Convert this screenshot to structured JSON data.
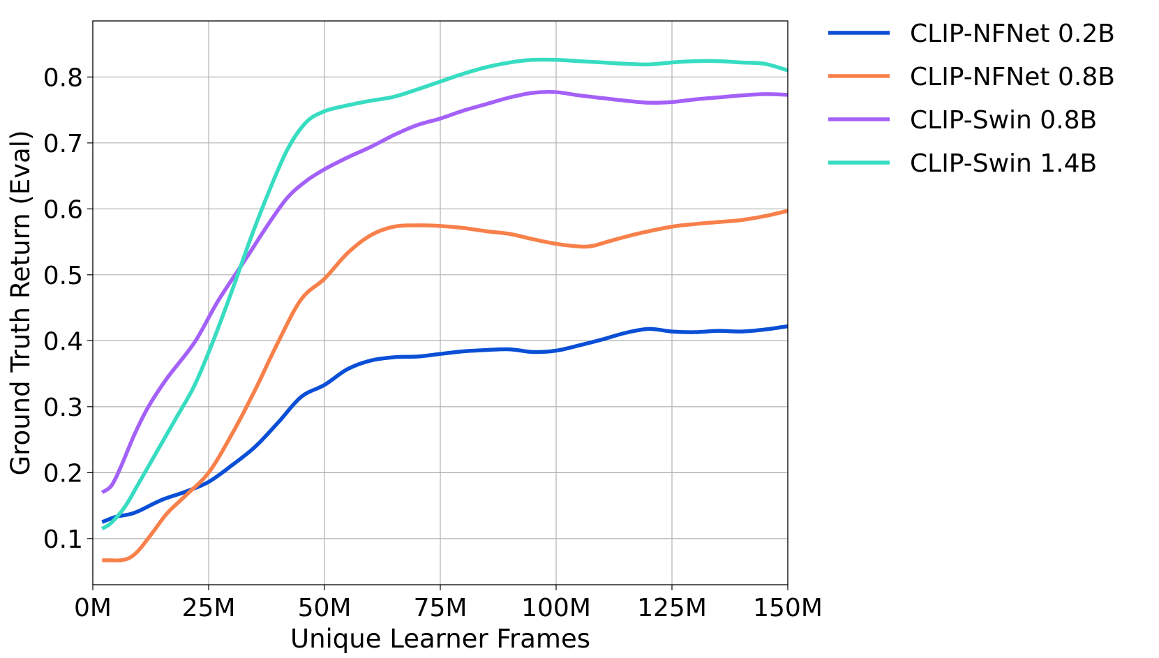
{
  "chart_data": {
    "type": "line",
    "title": "",
    "xlabel": "Unique Learner Frames",
    "ylabel": "Ground Truth Return (Eval)",
    "xlim": [
      0,
      150
    ],
    "ylim": [
      0.03,
      0.885
    ],
    "x_unit": "M (frames)",
    "xticks": [
      {
        "value": 0,
        "label": "0M"
      },
      {
        "value": 25,
        "label": "25M"
      },
      {
        "value": 50,
        "label": "50M"
      },
      {
        "value": 75,
        "label": "75M"
      },
      {
        "value": 100,
        "label": "100M"
      },
      {
        "value": 125,
        "label": "125M"
      },
      {
        "value": 150,
        "label": "150M"
      }
    ],
    "yticks": [
      {
        "value": 0.1,
        "label": "0.1"
      },
      {
        "value": 0.2,
        "label": "0.2"
      },
      {
        "value": 0.3,
        "label": "0.3"
      },
      {
        "value": 0.4,
        "label": "0.4"
      },
      {
        "value": 0.5,
        "label": "0.5"
      },
      {
        "value": 0.6,
        "label": "0.6"
      },
      {
        "value": 0.7,
        "label": "0.7"
      },
      {
        "value": 0.8,
        "label": "0.8"
      }
    ],
    "grid": true,
    "legend_position": "outside-right-top",
    "series": [
      {
        "name": "CLIP-NFNet 0.2B",
        "color": "#0a4fd6",
        "points": [
          [
            2,
            0.125
          ],
          [
            5,
            0.133
          ],
          [
            8,
            0.137
          ],
          [
            10,
            0.142
          ],
          [
            15,
            0.159
          ],
          [
            20,
            0.171
          ],
          [
            25,
            0.186
          ],
          [
            30,
            0.211
          ],
          [
            35,
            0.239
          ],
          [
            40,
            0.276
          ],
          [
            45,
            0.315
          ],
          [
            50,
            0.333
          ],
          [
            55,
            0.357
          ],
          [
            60,
            0.37
          ],
          [
            65,
            0.375
          ],
          [
            70,
            0.376
          ],
          [
            75,
            0.38
          ],
          [
            80,
            0.384
          ],
          [
            85,
            0.386
          ],
          [
            90,
            0.387
          ],
          [
            95,
            0.383
          ],
          [
            100,
            0.385
          ],
          [
            105,
            0.393
          ],
          [
            110,
            0.402
          ],
          [
            115,
            0.412
          ],
          [
            120,
            0.418
          ],
          [
            125,
            0.414
          ],
          [
            130,
            0.413
          ],
          [
            135,
            0.415
          ],
          [
            140,
            0.414
          ],
          [
            145,
            0.417
          ],
          [
            150,
            0.422
          ]
        ]
      },
      {
        "name": "CLIP-NFNet 0.8B",
        "color": "#f8804a",
        "points": [
          [
            2,
            0.067
          ],
          [
            4,
            0.067
          ],
          [
            6,
            0.067
          ],
          [
            8,
            0.071
          ],
          [
            10,
            0.083
          ],
          [
            13,
            0.11
          ],
          [
            16,
            0.138
          ],
          [
            20,
            0.165
          ],
          [
            25,
            0.2
          ],
          [
            30,
            0.258
          ],
          [
            35,
            0.325
          ],
          [
            40,
            0.398
          ],
          [
            45,
            0.463
          ],
          [
            50,
            0.494
          ],
          [
            55,
            0.533
          ],
          [
            60,
            0.56
          ],
          [
            65,
            0.573
          ],
          [
            70,
            0.575
          ],
          [
            75,
            0.574
          ],
          [
            80,
            0.571
          ],
          [
            85,
            0.566
          ],
          [
            90,
            0.562
          ],
          [
            95,
            0.554
          ],
          [
            100,
            0.547
          ],
          [
            105,
            0.543
          ],
          [
            108,
            0.544
          ],
          [
            112,
            0.552
          ],
          [
            118,
            0.563
          ],
          [
            125,
            0.573
          ],
          [
            130,
            0.577
          ],
          [
            135,
            0.58
          ],
          [
            140,
            0.583
          ],
          [
            145,
            0.589
          ],
          [
            150,
            0.597
          ]
        ]
      },
      {
        "name": "CLIP-Swin 0.8B",
        "color": "#a461f8",
        "points": [
          [
            2,
            0.17
          ],
          [
            4,
            0.18
          ],
          [
            6,
            0.208
          ],
          [
            9,
            0.258
          ],
          [
            12,
            0.3
          ],
          [
            16,
            0.343
          ],
          [
            22,
            0.398
          ],
          [
            27,
            0.46
          ],
          [
            33,
            0.524
          ],
          [
            38,
            0.578
          ],
          [
            42,
            0.617
          ],
          [
            46,
            0.642
          ],
          [
            50,
            0.66
          ],
          [
            55,
            0.678
          ],
          [
            60,
            0.694
          ],
          [
            65,
            0.712
          ],
          [
            70,
            0.727
          ],
          [
            75,
            0.737
          ],
          [
            80,
            0.749
          ],
          [
            85,
            0.759
          ],
          [
            90,
            0.769
          ],
          [
            95,
            0.776
          ],
          [
            100,
            0.777
          ],
          [
            105,
            0.772
          ],
          [
            110,
            0.768
          ],
          [
            115,
            0.764
          ],
          [
            120,
            0.761
          ],
          [
            125,
            0.762
          ],
          [
            130,
            0.766
          ],
          [
            135,
            0.769
          ],
          [
            140,
            0.772
          ],
          [
            145,
            0.774
          ],
          [
            150,
            0.773
          ]
        ]
      },
      {
        "name": "CLIP-Swin 1.4B",
        "color": "#37dcc1",
        "points": [
          [
            2,
            0.115
          ],
          [
            4,
            0.124
          ],
          [
            7,
            0.149
          ],
          [
            10,
            0.185
          ],
          [
            14,
            0.234
          ],
          [
            18,
            0.283
          ],
          [
            22,
            0.333
          ],
          [
            26,
            0.4
          ],
          [
            30,
            0.475
          ],
          [
            34,
            0.554
          ],
          [
            38,
            0.626
          ],
          [
            42,
            0.69
          ],
          [
            46,
            0.731
          ],
          [
            50,
            0.748
          ],
          [
            55,
            0.757
          ],
          [
            60,
            0.764
          ],
          [
            65,
            0.77
          ],
          [
            70,
            0.781
          ],
          [
            75,
            0.793
          ],
          [
            80,
            0.805
          ],
          [
            85,
            0.815
          ],
          [
            90,
            0.822
          ],
          [
            95,
            0.826
          ],
          [
            100,
            0.826
          ],
          [
            105,
            0.824
          ],
          [
            110,
            0.822
          ],
          [
            115,
            0.82
          ],
          [
            120,
            0.819
          ],
          [
            125,
            0.822
          ],
          [
            130,
            0.824
          ],
          [
            135,
            0.824
          ],
          [
            140,
            0.822
          ],
          [
            145,
            0.82
          ],
          [
            150,
            0.81
          ]
        ]
      }
    ]
  }
}
